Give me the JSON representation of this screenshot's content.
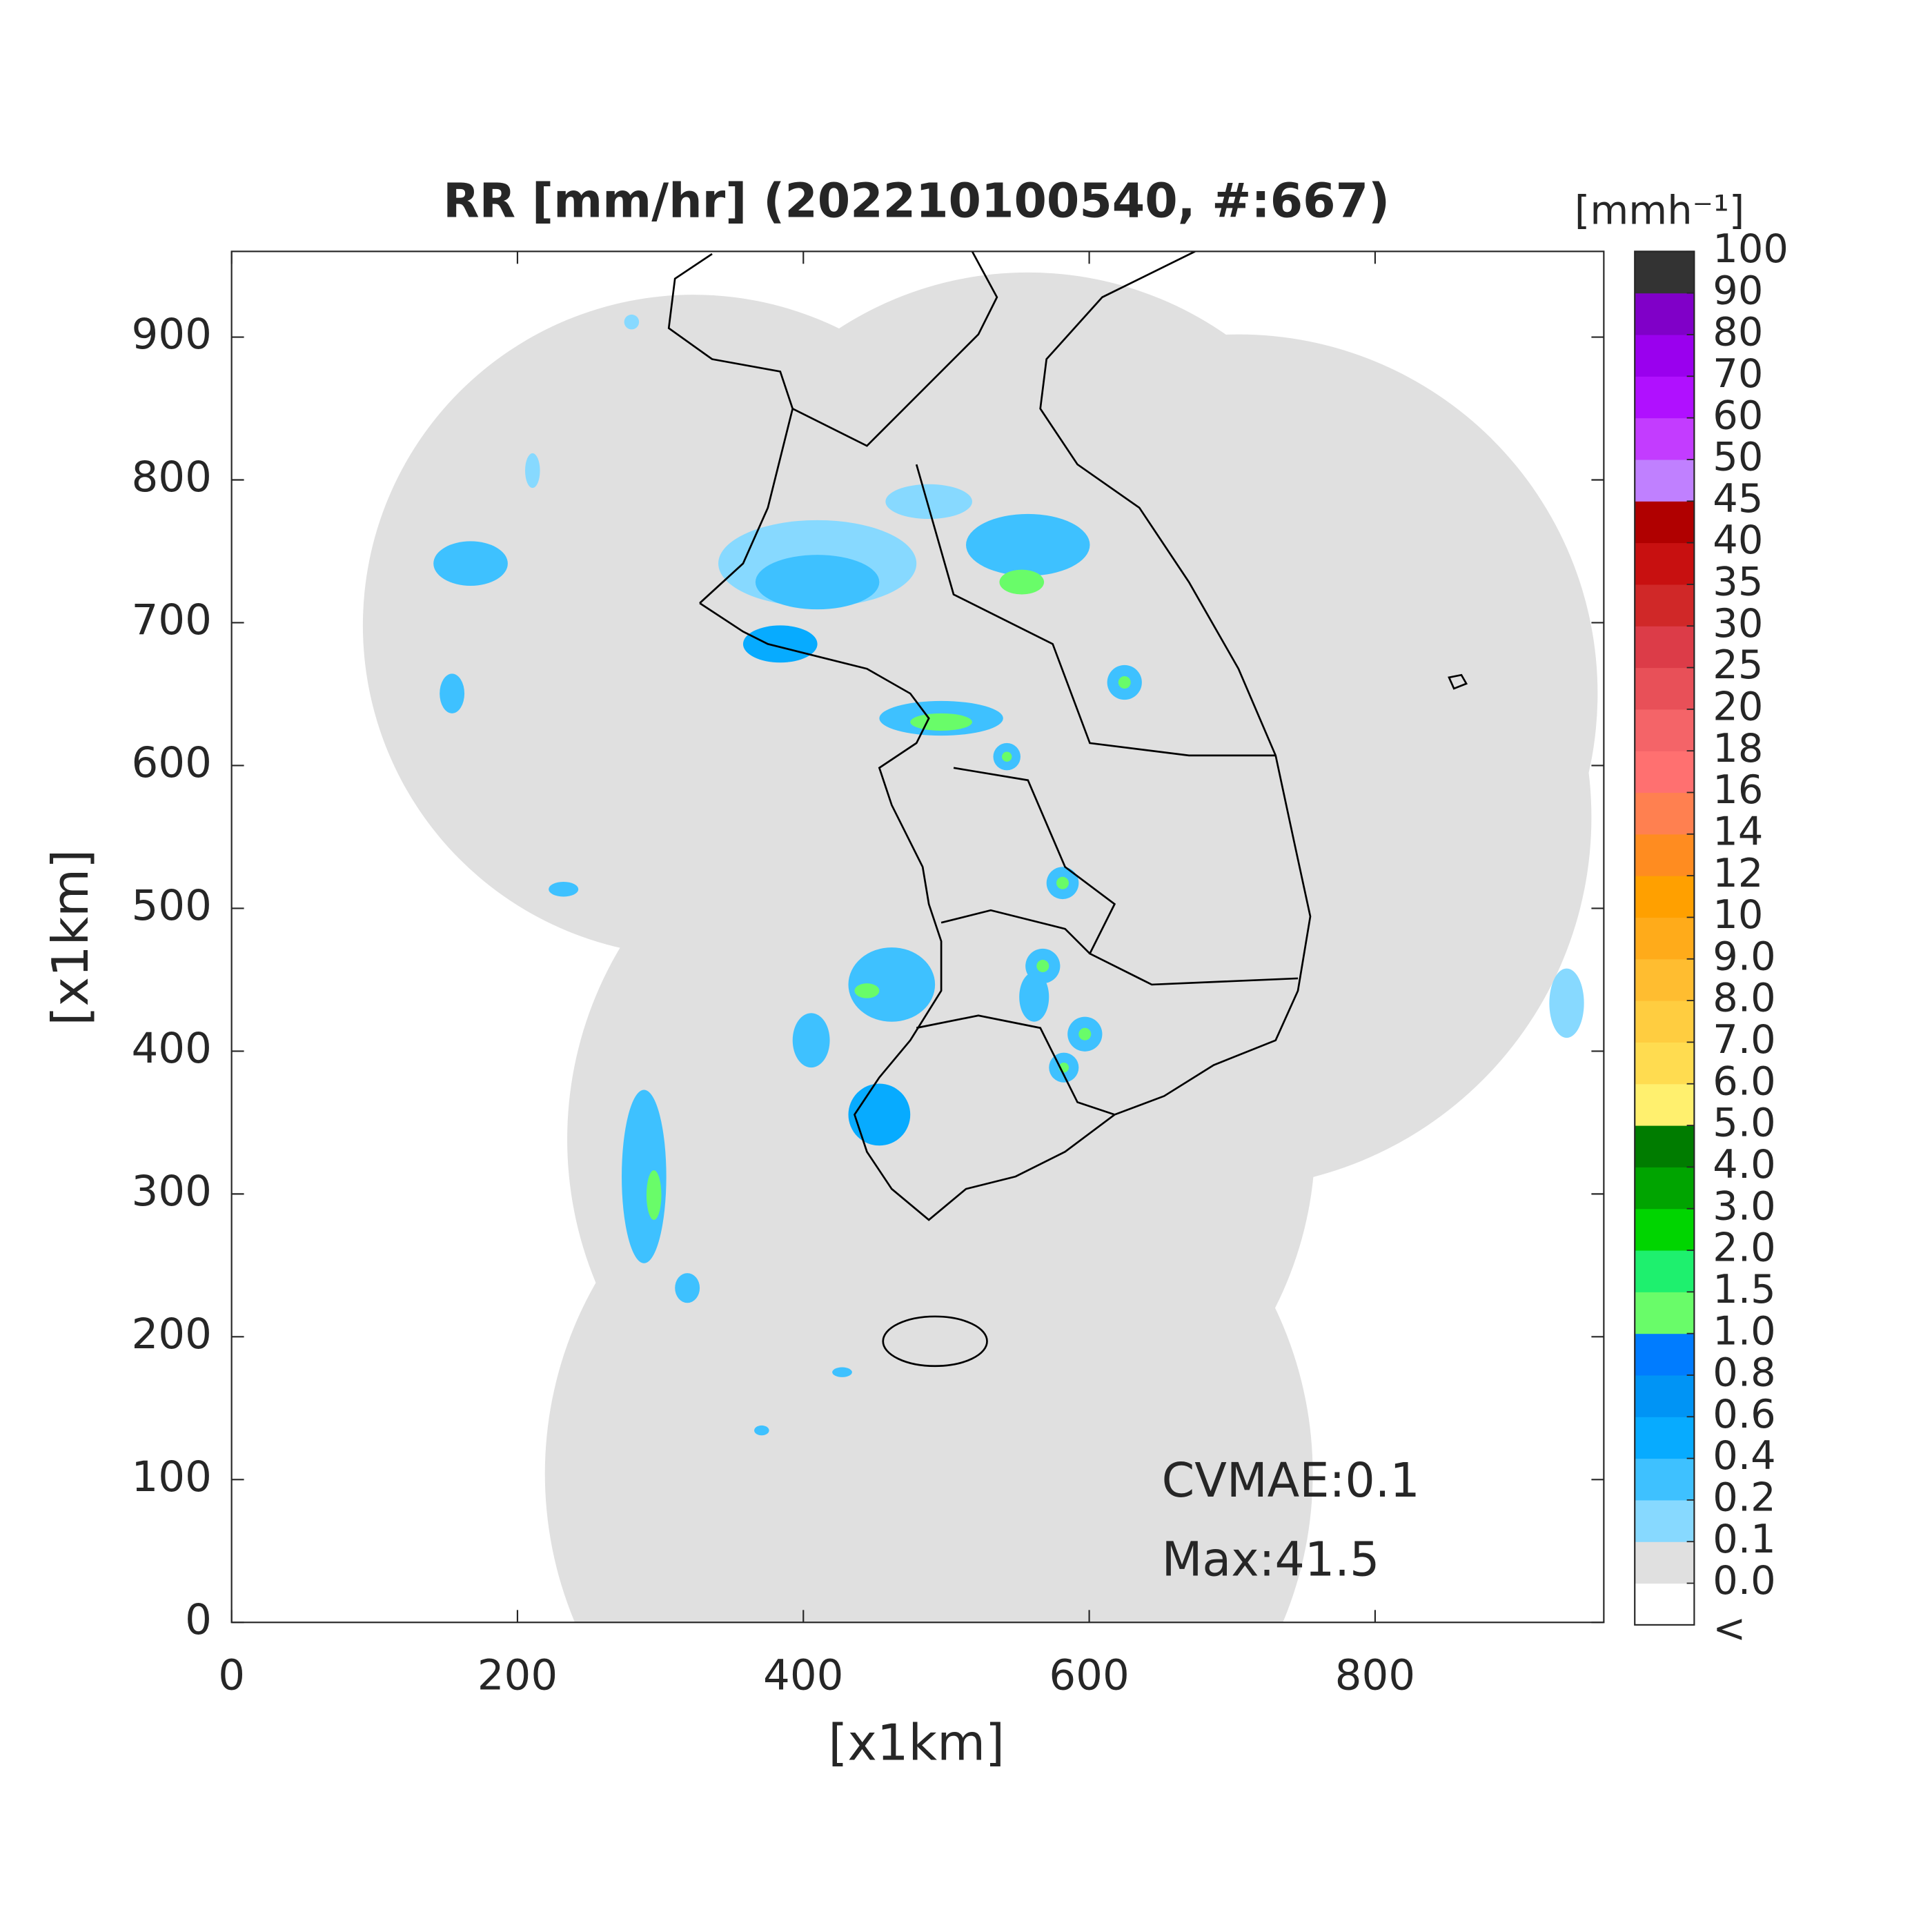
{
  "chart_data": {
    "type": "map",
    "title": "RR [mm/hr] (202210100540, #:667)",
    "x_label": "[x1km]",
    "y_label": "[x1km]",
    "xlim": [
      0,
      960
    ],
    "ylim": [
      0,
      960
    ],
    "xticks": [
      0,
      200,
      400,
      600,
      800
    ],
    "yticks": [
      0,
      100,
      200,
      300,
      400,
      500,
      600,
      700,
      800,
      900
    ],
    "annotations": [
      "CVMAE:0.1",
      "Max:41.5"
    ],
    "colorbar": {
      "label": "[mmh⁻¹]",
      "below_label": "<",
      "ticks": [
        {
          "value": 0,
          "label": "0.0"
        },
        0.1,
        0.2,
        0.4,
        0.6,
        0.8,
        {
          "value": 1,
          "label": "1.0"
        },
        1.5,
        {
          "value": 2,
          "label": "2.0"
        },
        {
          "value": 3,
          "label": "3.0"
        },
        {
          "value": 4,
          "label": "4.0"
        },
        {
          "value": 5,
          "label": "5.0"
        },
        {
          "value": 6,
          "label": "6.0"
        },
        {
          "value": 7,
          "label": "7.0"
        },
        {
          "value": 8,
          "label": "8.0"
        },
        {
          "value": 9,
          "label": "9.0"
        },
        10,
        12,
        14,
        16,
        18,
        20,
        25,
        30,
        35,
        40,
        45,
        50,
        60,
        70,
        80,
        90,
        100
      ],
      "colors": [
        "#ffffff",
        "#e0e0e0",
        "#87d9ff",
        "#3ec1ff",
        "#07abff",
        "#0094f5",
        "#007cff",
        "#69fc69",
        "#1ef06e",
        "#00d500",
        "#00a400",
        "#007c00",
        "#fff06e",
        "#ffdc50",
        "#ffcd40",
        "#ffbd30",
        "#ffab1a",
        "#ffa000",
        "#ff8c20",
        "#ff8050",
        "#ff7070",
        "#f46468",
        "#e85058",
        "#dc3c48",
        "#d02828",
        "#c81010",
        "#b00000",
        "#c080ff",
        "#c33cff",
        "#b010ff",
        "#9a00ee",
        "#8000c8",
        "#333333"
      ]
    }
  }
}
